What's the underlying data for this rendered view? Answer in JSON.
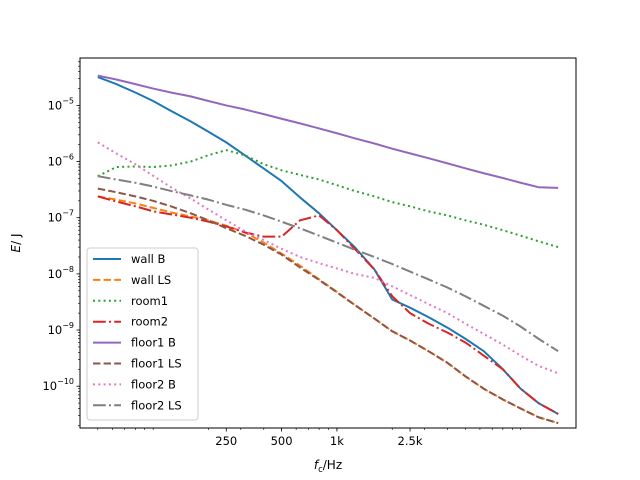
{
  "chart_data": {
    "type": "line",
    "xlabel_main": "f",
    "xlabel_sub": "c",
    "xlabel_unit": "/Hz",
    "ylabel_main": "E",
    "ylabel_unit": "/ J",
    "xscale": "log",
    "yscale": "log",
    "xlim": [
      40,
      20000
    ],
    "ylim": [
      1.8e-11,
      7e-05
    ],
    "grid": false,
    "legend_placement": "lower-left",
    "x_tick_values": [
      250,
      500,
      1000,
      2500
    ],
    "x_tick_labels": [
      "250",
      "500",
      "1k",
      "2.5k"
    ],
    "y_ticks": [
      {
        "value": 1e-10,
        "base": "10",
        "exp": "−10"
      },
      {
        "value": 1e-09,
        "base": "10",
        "exp": "−9"
      },
      {
        "value": 1e-08,
        "base": "10",
        "exp": "−8"
      },
      {
        "value": 1e-07,
        "base": "10",
        "exp": "−7"
      },
      {
        "value": 1e-06,
        "base": "10",
        "exp": "−6"
      },
      {
        "value": 1e-05,
        "base": "10",
        "exp": "−5"
      }
    ],
    "x": [
      50,
      63,
      80,
      100,
      125,
      160,
      200,
      250,
      315,
      400,
      500,
      630,
      800,
      1000,
      1250,
      1600,
      2000,
      2500,
      3150,
      4000,
      5000,
      6300,
      8000,
      10000,
      12500,
      16000
    ],
    "series": [
      {
        "name": "wall B",
        "color": "#1f77b4",
        "dash": "solid",
        "values": [
          3.2e-05,
          2.4e-05,
          1.7e-05,
          1.2e-05,
          8e-06,
          5.2e-06,
          3.4e-06,
          2.2e-06,
          1.3e-06,
          7.5e-07,
          4.5e-07,
          2.3e-07,
          1.2e-07,
          6e-08,
          3e-08,
          1.2e-08,
          3.5e-09,
          2.5e-09,
          1.7e-09,
          1.1e-09,
          7e-10,
          4.2e-10,
          2e-10,
          9e-11,
          5e-11,
          3.2e-11
        ]
      },
      {
        "name": "wall LS",
        "color": "#ff7f0e",
        "dash": "dashed",
        "values": [
          2.4e-07,
          2.1e-07,
          1.8e-07,
          1.5e-07,
          1.25e-07,
          1.05e-07,
          9e-08,
          7.2e-08,
          5.5e-08,
          3.6e-08,
          2.3e-08,
          1.4e-08,
          8e-09,
          4.8e-09,
          2.8e-09,
          1.6e-09,
          9.5e-10,
          6.5e-10,
          4.2e-10,
          2.6e-10,
          1.5e-10,
          9e-11,
          5.8e-11,
          4e-11,
          2.8e-11,
          2.2e-11
        ]
      },
      {
        "name": "room1",
        "color": "#2ca02c",
        "dash": "dotted",
        "values": [
          5.5e-07,
          8e-07,
          8.2e-07,
          8e-07,
          8.5e-07,
          1e-06,
          1.3e-06,
          1.6e-06,
          1.3e-06,
          9e-07,
          7e-07,
          5.8e-07,
          4.8e-07,
          3.8e-07,
          3e-07,
          2.4e-07,
          1.9e-07,
          1.6e-07,
          1.3e-07,
          1.1e-07,
          9e-08,
          7.5e-08,
          6e-08,
          4.8e-08,
          3.8e-08,
          3e-08
        ]
      },
      {
        "name": "room2",
        "color": "#d62728",
        "dash": "dashdot",
        "values": [
          2.4e-07,
          1.95e-07,
          1.6e-07,
          1.3e-07,
          1.15e-07,
          1e-07,
          8.5e-08,
          7e-08,
          5.5e-08,
          4.6e-08,
          4.6e-08,
          9e-08,
          1.1e-07,
          6e-08,
          2.8e-08,
          1.2e-08,
          4e-09,
          2e-09,
          1.3e-09,
          9e-10,
          6e-10,
          3.5e-10,
          2e-10,
          9e-11,
          5e-11,
          3.2e-11
        ]
      },
      {
        "name": "floor1 B",
        "color": "#9467bd",
        "dash": "solid",
        "values": [
          3.4e-05,
          2.9e-05,
          2.4e-05,
          2e-05,
          1.7e-05,
          1.45e-05,
          1.2e-05,
          1e-05,
          8.5e-06,
          7e-06,
          5.8e-06,
          4.8e-06,
          3.9e-06,
          3.2e-06,
          2.6e-06,
          2.1e-06,
          1.7e-06,
          1.4e-06,
          1.15e-06,
          9.3e-07,
          7.6e-07,
          6.2e-07,
          5.1e-07,
          4.2e-07,
          3.5e-07,
          3.4e-07
        ]
      },
      {
        "name": "floor1 LS",
        "color": "#8c564b",
        "dash": "dashed",
        "values": [
          3.3e-07,
          2.85e-07,
          2.4e-07,
          2e-07,
          1.6e-07,
          1.2e-07,
          9e-08,
          6.5e-08,
          4.8e-08,
          3.3e-08,
          2.2e-08,
          1.3e-08,
          7.8e-09,
          4.7e-09,
          2.8e-09,
          1.6e-09,
          9.5e-10,
          6.5e-10,
          4.2e-10,
          2.6e-10,
          1.5e-10,
          9e-11,
          5.8e-11,
          4e-11,
          2.8e-11,
          2.2e-11
        ]
      },
      {
        "name": "floor2 B",
        "color": "#e377c2",
        "dash": "dotted",
        "values": [
          2.2e-06,
          1.4e-06,
          9e-07,
          5.6e-07,
          3.5e-07,
          2.2e-07,
          1.4e-07,
          9e-08,
          5.8e-08,
          4e-08,
          2.8e-08,
          2e-08,
          1.55e-08,
          1.25e-08,
          1e-08,
          8.5e-09,
          6e-09,
          4.2e-09,
          2.9e-09,
          2e-09,
          1.3e-09,
          8.5e-10,
          5.5e-10,
          3.5e-10,
          2.3e-10,
          1.7e-10
        ]
      },
      {
        "name": "floor2 LS",
        "color": "#7f7f7f",
        "dash": "dashdot",
        "values": [
          5.5e-07,
          4.8e-07,
          4.2e-07,
          3.6e-07,
          3e-07,
          2.5e-07,
          2.1e-07,
          1.7e-07,
          1.4e-07,
          1.1e-07,
          8.5e-08,
          6.5e-08,
          4.8e-08,
          3.6e-08,
          2.7e-08,
          2e-08,
          1.5e-08,
          1.1e-08,
          8e-09,
          5.7e-09,
          4e-09,
          2.7e-09,
          1.8e-09,
          1.15e-09,
          7e-10,
          4.2e-10
        ]
      }
    ]
  }
}
